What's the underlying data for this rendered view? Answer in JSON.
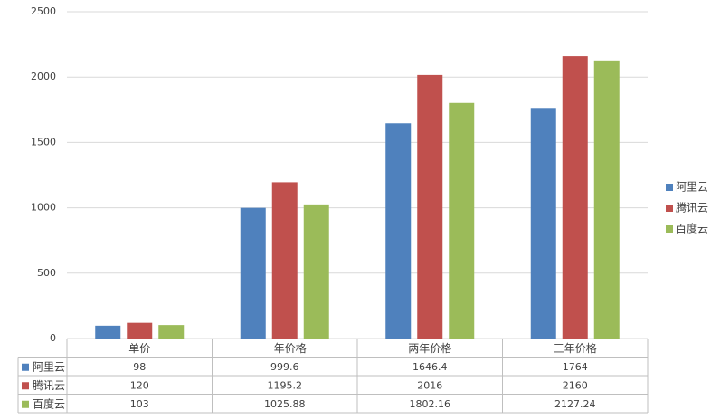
{
  "chart_data": {
    "type": "bar",
    "title": "",
    "xlabel": "",
    "ylabel": "",
    "ylim": [
      0,
      2500
    ],
    "yticks": [
      0,
      500,
      1000,
      1500,
      2000,
      2500
    ],
    "grid": true,
    "legend_position": "right",
    "categories": [
      "单价",
      "一年价格",
      "两年价格",
      "三年价格"
    ],
    "series": [
      {
        "name": "阿里云",
        "color": "#4f81bd",
        "values": [
          98,
          999.6,
          1646.4,
          1764
        ]
      },
      {
        "name": "腾讯云",
        "color": "#c0504d",
        "values": [
          120,
          1195.2,
          2016,
          2160
        ]
      },
      {
        "name": "百度云",
        "color": "#9bbb59",
        "values": [
          103,
          1025.88,
          1802.16,
          2127.24
        ]
      }
    ],
    "data_table": {
      "cells": [
        [
          "98",
          "999.6",
          "1646.4",
          "1764"
        ],
        [
          "120",
          "1195.2",
          "2016",
          "2160"
        ],
        [
          "103",
          "1025.88",
          "1802.16",
          "2127.24"
        ]
      ]
    }
  },
  "colors": {
    "grid": "#d9d9d9",
    "text": "#404040",
    "table_border": "#bfbfbf"
  }
}
